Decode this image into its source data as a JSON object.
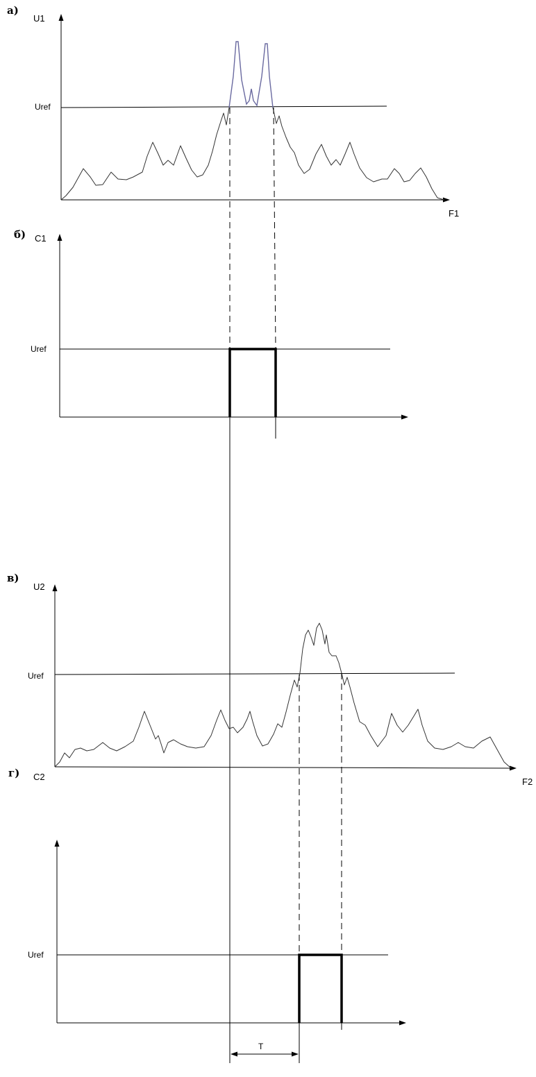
{
  "panels": {
    "a": {
      "letter": "а)",
      "y_axis": "U1",
      "x_axis": "F1",
      "ref_label": "Uref"
    },
    "b": {
      "letter": "б)",
      "y_axis": "C1",
      "ref_label": "Uref"
    },
    "c": {
      "letter": "в)",
      "y_axis": "U2",
      "x_axis": "F2",
      "ref_label": "Uref"
    },
    "d": {
      "letter": "г)",
      "y_axis": "C2",
      "ref_label": "Uref"
    }
  },
  "interval_label": "T"
}
